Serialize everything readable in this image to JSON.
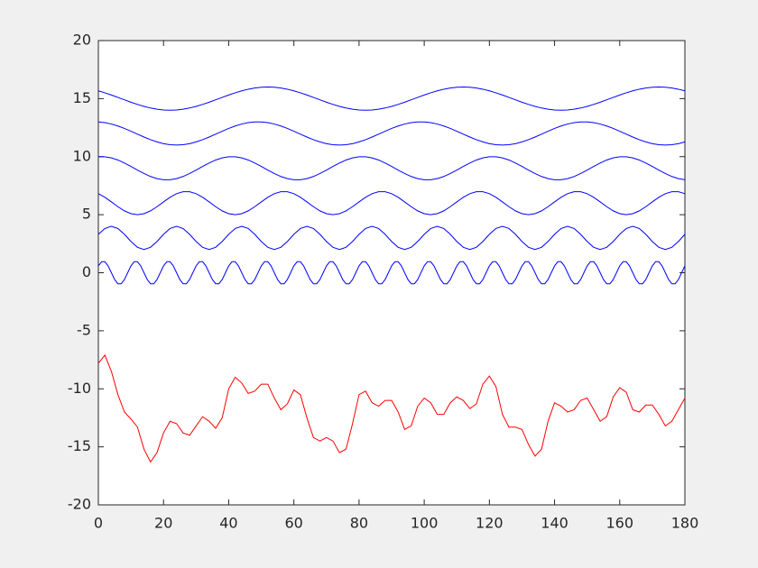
{
  "chart_data": {
    "type": "line",
    "x": [
      0,
      2,
      4,
      6,
      8,
      10,
      12,
      14,
      16,
      18,
      20,
      22,
      24,
      26,
      28,
      30,
      32,
      34,
      36,
      38,
      40,
      42,
      44,
      46,
      48,
      50,
      52,
      54,
      56,
      58,
      60,
      62,
      64,
      66,
      68,
      70,
      72,
      74,
      76,
      78,
      80,
      82,
      84,
      86,
      88,
      90,
      92,
      94,
      96,
      98,
      100,
      102,
      104,
      106,
      108,
      110,
      112,
      114,
      116,
      118,
      120,
      122,
      124,
      126,
      128,
      130,
      132,
      134,
      136,
      138,
      140,
      142,
      144,
      146,
      148,
      150,
      152,
      154,
      156,
      158,
      160,
      162,
      164,
      166,
      168,
      170,
      172,
      174,
      176,
      178,
      180
    ],
    "series": [
      {
        "color": "#0000ff",
        "x": [
          0,
          1,
          2,
          3,
          4,
          5,
          6,
          7,
          8,
          9,
          10,
          11,
          12,
          13,
          14,
          15,
          16,
          17,
          18,
          19,
          20,
          21,
          22,
          23,
          24,
          25,
          26,
          27,
          28,
          29,
          30,
          31,
          32,
          33,
          34,
          35,
          36,
          37,
          38,
          39,
          40,
          41,
          42,
          43,
          44,
          45,
          46,
          47,
          48,
          49,
          50,
          51,
          52,
          53,
          54,
          55,
          56,
          57,
          58,
          59,
          60,
          61,
          62,
          63,
          64,
          65,
          66,
          67,
          68,
          69,
          70,
          71,
          72,
          73,
          74,
          75,
          76,
          77,
          78,
          79,
          80,
          81,
          82,
          83,
          84,
          85,
          86,
          87,
          88,
          89,
          90,
          91,
          92,
          93,
          94,
          95,
          96,
          97,
          98,
          99,
          100,
          101,
          102,
          103,
          104,
          105,
          106,
          107,
          108,
          109,
          110,
          111,
          112,
          113,
          114,
          115,
          116,
          117,
          118,
          119,
          120,
          121,
          122,
          123,
          124,
          125,
          126,
          127,
          128,
          129,
          130,
          131,
          132,
          133,
          134,
          135,
          136,
          137,
          138,
          139,
          140,
          141,
          142,
          143,
          144,
          145,
          146,
          147,
          148,
          149,
          150,
          151,
          152,
          153,
          154,
          155,
          156,
          157,
          158,
          159,
          160,
          161,
          162,
          163,
          164,
          165,
          166,
          167,
          168,
          169,
          170,
          171,
          172,
          173,
          174,
          175,
          176,
          177,
          178,
          179,
          180
        ],
        "values": [
          0.59,
          0.95,
          0.95,
          0.59,
          0,
          -0.59,
          -0.95,
          -0.95,
          -0.59,
          0,
          0.59,
          0.95,
          0.95,
          0.59,
          0,
          -0.59,
          -0.95,
          -0.95,
          -0.59,
          0,
          0.59,
          0.95,
          0.95,
          0.59,
          0,
          -0.59,
          -0.95,
          -0.95,
          -0.59,
          0,
          0.59,
          0.95,
          0.95,
          0.59,
          0,
          -0.59,
          -0.95,
          -0.95,
          -0.59,
          0,
          0.59,
          0.95,
          0.95,
          0.59,
          0,
          -0.59,
          -0.95,
          -0.95,
          -0.59,
          0,
          0.59,
          0.95,
          0.95,
          0.59,
          0,
          -0.59,
          -0.95,
          -0.95,
          -0.59,
          0,
          0.59,
          0.95,
          0.95,
          0.59,
          0,
          -0.59,
          -0.95,
          -0.95,
          -0.59,
          0,
          0.59,
          0.95,
          0.95,
          0.59,
          0,
          -0.59,
          -0.95,
          -0.95,
          -0.59,
          0,
          0.59,
          0.95,
          0.95,
          0.59,
          0,
          -0.59,
          -0.95,
          -0.95,
          -0.59,
          0,
          0.59,
          0.95,
          0.95,
          0.59,
          0,
          -0.59,
          -0.95,
          -0.95,
          -0.59,
          0,
          0.59,
          0.95,
          0.95,
          0.59,
          0,
          -0.59,
          -0.95,
          -0.95,
          -0.59,
          0,
          0.59,
          0.95,
          0.95,
          0.59,
          0,
          -0.59,
          -0.95,
          -0.95,
          -0.59,
          0,
          0.59,
          0.95,
          0.95,
          0.59,
          0,
          -0.59,
          -0.95,
          -0.95,
          -0.59,
          0,
          0.59,
          0.95,
          0.95,
          0.59,
          0,
          -0.59,
          -0.95,
          -0.95,
          -0.59,
          0,
          0.59,
          0.95,
          0.95,
          0.59,
          0,
          -0.59,
          -0.95,
          -0.95,
          -0.59,
          0,
          0.59,
          0.95,
          0.95,
          0.59,
          0,
          -0.59,
          -0.95,
          -0.95,
          -0.59,
          0,
          0.59,
          0.95,
          0.95,
          0.59,
          0,
          -0.59,
          -0.95,
          -0.95,
          -0.59,
          0,
          0.59,
          0.95,
          0.95,
          0.59,
          0,
          -0.59,
          -0.95,
          -0.95,
          -0.59,
          0,
          0.59
        ]
      },
      {
        "color": "#0000ff",
        "values": [
          3.31,
          3.81,
          4,
          3.81,
          3.31,
          2.69,
          2.19,
          2,
          2.19,
          2.69,
          3.31,
          3.81,
          4,
          3.81,
          3.31,
          2.69,
          2.19,
          2,
          2.19,
          2.69,
          3.31,
          3.81,
          4,
          3.81,
          3.31,
          2.69,
          2.19,
          2,
          2.19,
          2.69,
          3.31,
          3.81,
          4,
          3.81,
          3.31,
          2.69,
          2.19,
          2,
          2.19,
          2.69,
          3.31,
          3.81,
          4,
          3.81,
          3.31,
          2.69,
          2.19,
          2,
          2.19,
          2.69,
          3.31,
          3.81,
          4,
          3.81,
          3.31,
          2.69,
          2.19,
          2,
          2.19,
          2.69,
          3.31,
          3.81,
          4,
          3.81,
          3.31,
          2.69,
          2.19,
          2,
          2.19,
          2.69,
          3.31,
          3.81,
          4,
          3.81,
          3.31,
          2.69,
          2.19,
          2,
          2.19,
          2.69,
          3.31,
          3.81,
          4,
          3.81,
          3.31,
          2.69,
          2.19,
          2,
          2.19,
          2.69,
          3.31
        ]
      },
      {
        "color": "#0000ff",
        "values": [
          6.81,
          6.5,
          6.1,
          5.69,
          5.33,
          5.09,
          5,
          5.09,
          5.33,
          5.69,
          6.1,
          6.5,
          6.81,
          6.98,
          6.98,
          6.81,
          6.5,
          6.1,
          5.69,
          5.33,
          5.09,
          5,
          5.09,
          5.33,
          5.69,
          6.1,
          6.5,
          6.81,
          6.98,
          6.98,
          6.81,
          6.5,
          6.1,
          5.69,
          5.33,
          5.09,
          5,
          5.09,
          5.33,
          5.69,
          6.1,
          6.5,
          6.81,
          6.98,
          6.98,
          6.81,
          6.5,
          6.1,
          5.69,
          5.33,
          5.09,
          5,
          5.09,
          5.33,
          5.69,
          6.1,
          6.5,
          6.81,
          6.98,
          6.98,
          6.81,
          6.5,
          6.1,
          5.69,
          5.33,
          5.09,
          5,
          5.09,
          5.33,
          5.69,
          6.1,
          6.5,
          6.81,
          6.98,
          6.98,
          6.81,
          6.5,
          6.1,
          5.69,
          5.33,
          5.09,
          5,
          5.09,
          5.33,
          5.69,
          6.1,
          6.5,
          6.81,
          6.98,
          6.98,
          6.81
        ]
      },
      {
        "color": "#0000ff",
        "values": [
          9.99,
          9.99,
          9.89,
          9.71,
          9.45,
          9.16,
          8.84,
          8.55,
          8.29,
          8.11,
          8.01,
          8.01,
          8.11,
          8.29,
          8.55,
          8.84,
          9.16,
          9.45,
          9.71,
          9.89,
          9.99,
          9.99,
          9.89,
          9.71,
          9.45,
          9.16,
          8.84,
          8.55,
          8.29,
          8.11,
          8.01,
          8.01,
          8.11,
          8.29,
          8.55,
          8.84,
          9.16,
          9.45,
          9.71,
          9.89,
          9.99,
          9.99,
          9.89,
          9.71,
          9.45,
          9.16,
          8.84,
          8.55,
          8.29,
          8.11,
          8.01,
          8.01,
          8.11,
          8.29,
          8.55,
          8.84,
          9.16,
          9.45,
          9.71,
          9.89,
          9.99,
          9.99,
          9.89,
          9.71,
          9.45,
          9.16,
          8.84,
          8.55,
          8.29,
          8.11,
          8.01,
          8.01,
          8.11,
          8.29,
          8.55,
          8.84,
          9.16,
          9.45,
          9.71,
          9.89,
          9.99,
          9.99,
          9.89,
          9.71,
          9.45,
          9.16,
          8.84,
          8.55,
          8.29,
          8.11,
          8.01
        ]
      },
      {
        "color": "#0000ff",
        "values": [
          12.99,
          12.93,
          12.81,
          12.64,
          12.43,
          12.19,
          11.94,
          11.69,
          11.46,
          11.27,
          11.12,
          11.03,
          11,
          11.03,
          11.12,
          11.27,
          11.46,
          11.69,
          11.94,
          12.19,
          12.43,
          12.64,
          12.81,
          12.93,
          12.99,
          12.99,
          12.93,
          12.81,
          12.64,
          12.43,
          12.19,
          11.94,
          11.69,
          11.46,
          11.27,
          11.12,
          11.03,
          11,
          11.03,
          11.12,
          11.27,
          11.46,
          11.69,
          11.94,
          12.19,
          12.43,
          12.64,
          12.81,
          12.93,
          12.99,
          12.99,
          12.93,
          12.81,
          12.64,
          12.43,
          12.19,
          11.94,
          11.69,
          11.46,
          11.27,
          11.12,
          11.03,
          11,
          11.03,
          11.12,
          11.27,
          11.46,
          11.69,
          11.94,
          12.19,
          12.43,
          12.64,
          12.81,
          12.93,
          12.99,
          12.99,
          12.93,
          12.81,
          12.64,
          12.43,
          12.19,
          11.94,
          11.69,
          11.46,
          11.27,
          11.12,
          11.03,
          11,
          11.03,
          11.12,
          11.27
        ]
      },
      {
        "color": "#0000ff",
        "values": [
          15.67,
          15.5,
          15.31,
          15.1,
          14.9,
          14.69,
          14.5,
          14.33,
          14.19,
          14.09,
          14.02,
          14,
          14.02,
          14.09,
          14.19,
          14.33,
          14.5,
          14.69,
          14.9,
          15.1,
          15.31,
          15.5,
          15.67,
          15.81,
          15.91,
          15.98,
          16,
          15.98,
          15.91,
          15.81,
          15.67,
          15.5,
          15.31,
          15.1,
          14.9,
          14.69,
          14.5,
          14.33,
          14.19,
          14.09,
          14.02,
          14,
          14.02,
          14.09,
          14.19,
          14.33,
          14.5,
          14.69,
          14.9,
          15.1,
          15.31,
          15.5,
          15.67,
          15.81,
          15.91,
          15.98,
          16,
          15.98,
          15.91,
          15.81,
          15.67,
          15.5,
          15.31,
          15.1,
          14.9,
          14.69,
          14.5,
          14.33,
          14.19,
          14.09,
          14.02,
          14,
          14.02,
          14.09,
          14.19,
          14.33,
          14.5,
          14.69,
          14.9,
          15.1,
          15.31,
          15.5,
          15.67,
          15.81,
          15.91,
          15.98,
          16,
          15.98,
          15.91,
          15.81,
          15.67
        ]
      },
      {
        "color": "#ff0000",
        "values": [
          -7.8,
          -7.1,
          -8.5,
          -10.5,
          -12,
          -12.6,
          -13.3,
          -15.2,
          -16.3,
          -15.5,
          -13.8,
          -12.8,
          -13,
          -13.8,
          -14,
          -13.2,
          -12.4,
          -12.8,
          -13.4,
          -12.5,
          -10,
          -9,
          -9.5,
          -10.4,
          -10.2,
          -9.6,
          -9.6,
          -10.8,
          -11.8,
          -11.3,
          -10.1,
          -10.5,
          -12.5,
          -14.2,
          -14.5,
          -14.2,
          -14.5,
          -15.5,
          -15.2,
          -13,
          -10.5,
          -10.2,
          -11.2,
          -11.5,
          -11,
          -11,
          -12,
          -13.5,
          -13.2,
          -11.5,
          -10.8,
          -11.2,
          -12.2,
          -12.2,
          -11.2,
          -10.7,
          -11,
          -11.7,
          -11.3,
          -9.6,
          -8.9,
          -9.8,
          -12.2,
          -13.3,
          -13.3,
          -13.5,
          -14.8,
          -15.8,
          -15.2,
          -12.8,
          -11.2,
          -11.5,
          -12,
          -11.8,
          -11,
          -10.8,
          -11.8,
          -12.8,
          -12.4,
          -10.7,
          -9.9,
          -10.3,
          -11.8,
          -12,
          -11.4,
          -11.4,
          -12.2,
          -13.2,
          -12.8,
          -11.8,
          -10.8
        ]
      }
    ],
    "xlim": [
      0,
      180
    ],
    "xticks": [
      0,
      20,
      40,
      60,
      80,
      100,
      120,
      140,
      160,
      180
    ],
    "ylim": [
      -20,
      20
    ],
    "yticks": [
      -20,
      -15,
      -10,
      -5,
      0,
      5,
      10,
      15,
      20
    ]
  }
}
